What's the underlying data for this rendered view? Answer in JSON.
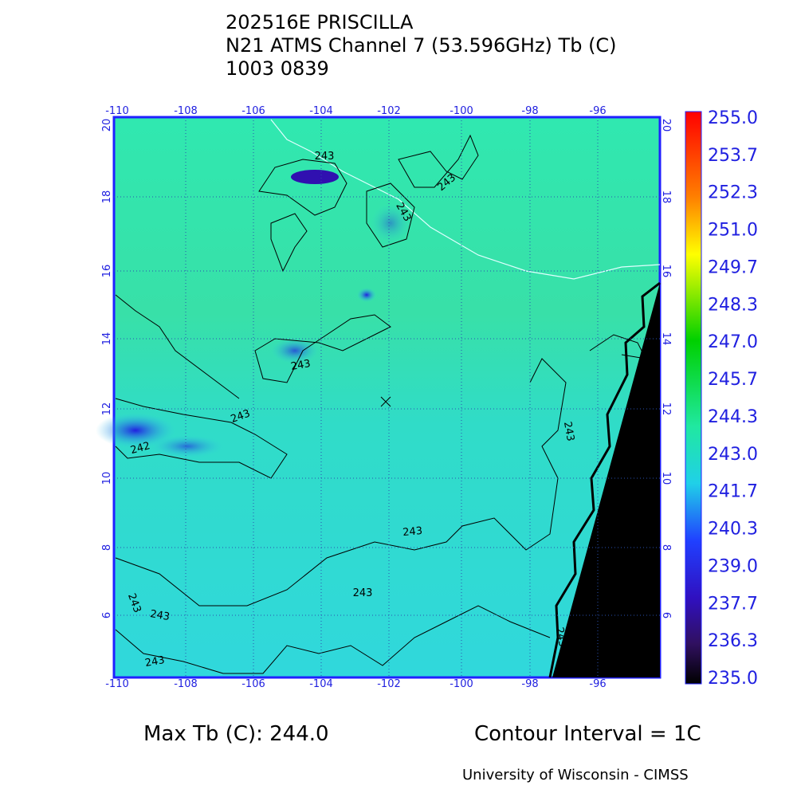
{
  "title": [
    "202516E PRISCILLA",
    "N21 ATMS Channel 7 (53.596GHz) Tb (C)",
    "1003 0839"
  ],
  "map": {
    "lon_ticks": [
      "-110",
      "-108",
      "-106",
      "-104",
      "-102",
      "-100",
      "-98",
      "-96"
    ],
    "lat_ticks": [
      "20",
      "18",
      "16",
      "14",
      "12",
      "10",
      "8",
      "6"
    ],
    "contour_labels": [
      "243",
      "243",
      "243",
      "243",
      "243",
      "242",
      "243",
      "243",
      "243",
      "243",
      "243",
      "243",
      "243"
    ]
  },
  "colorbar": {
    "labels": [
      "255.0",
      "253.7",
      "252.3",
      "251.0",
      "249.7",
      "248.3",
      "247.0",
      "245.7",
      "244.3",
      "243.0",
      "241.7",
      "240.3",
      "239.0",
      "237.7",
      "236.3",
      "235.0"
    ]
  },
  "footer": {
    "max_tb": "Max Tb (C): 244.0",
    "contour_interval": "Contour Interval = 1C",
    "credit": "University of Wisconsin - CIMSS"
  }
}
